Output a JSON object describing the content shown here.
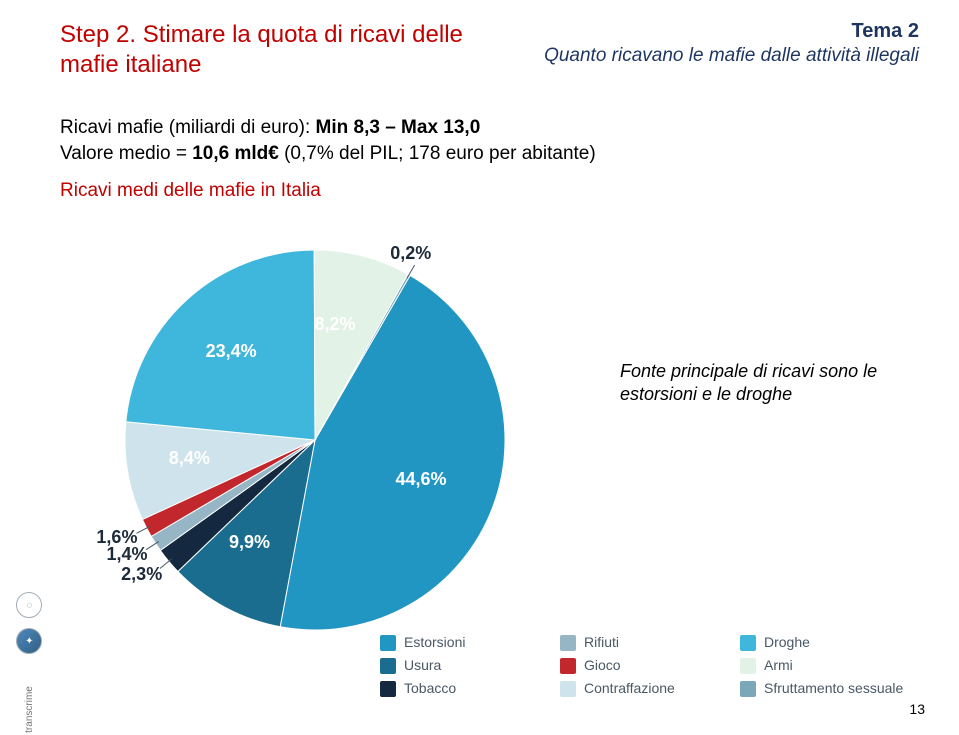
{
  "header": {
    "title_left": "Step 2. Stimare la quota di ricavi delle mafie italiane",
    "tema": "Tema 2",
    "subtema": "Quanto ricavano le mafie dalle attività illegali"
  },
  "body": {
    "line1_pre": "Ricavi mafie (miliardi di euro): ",
    "line1_bold": "Min 8,3 – Max 13,0",
    "line2_pre": "Valore medio = ",
    "line2_bold": "10,6 mld€",
    "line2_post": " (0,7% del PIL; 178 euro per abitante)",
    "chart_title": "Ricavi medi delle mafie in Italia"
  },
  "side_note": "Fonte principale di ricavi sono le estorsioni e le droghe",
  "page_number": "13",
  "pie": {
    "type": "pie",
    "background_color": "#ffffff",
    "start_angle_deg": -60,
    "slices": [
      {
        "label": "Estorsioni",
        "value": 44.6,
        "pct_label": "44,6%",
        "color": "#2296c2",
        "label_inside": true
      },
      {
        "label": "Usura",
        "value": 9.9,
        "pct_label": "9,9%",
        "color": "#1a6d8e",
        "label_inside": true
      },
      {
        "label": "Tabacco",
        "value": 2.3,
        "pct_label": "2,3%",
        "color": "#14293f",
        "label_inside": false
      },
      {
        "label": "Rifiuti",
        "value": 1.4,
        "pct_label": "1,4%",
        "color": "#96b6c5",
        "label_inside": false
      },
      {
        "label": "Gioco",
        "value": 1.6,
        "pct_label": "1,6%",
        "color": "#c1272d",
        "label_inside": false
      },
      {
        "label": "Contraffazione",
        "value": 8.4,
        "pct_label": "8,4%",
        "color": "#cfe3ec",
        "label_inside": true
      },
      {
        "label": "Droghe",
        "value": 23.4,
        "pct_label": "23,4%",
        "color": "#3fb6db",
        "label_inside": true
      },
      {
        "label": "Armi",
        "value": 8.2,
        "pct_label": "8,2%",
        "color": "#e3f2e6",
        "label_inside": true
      },
      {
        "label": "Sfruttamento sessuale",
        "value": 0.2,
        "pct_label": "0,2%",
        "color": "#7aa8b8",
        "label_inside": false
      }
    ]
  },
  "legend": {
    "order": [
      {
        "label": "Estorsioni",
        "color": "#2296c2"
      },
      {
        "label": "Rifiuti",
        "color": "#96b6c5"
      },
      {
        "label": "Droghe",
        "color": "#3fb6db"
      },
      {
        "label": "Usura",
        "color": "#1a6d8e"
      },
      {
        "label": "Gioco",
        "color": "#c1272d"
      },
      {
        "label": "Armi",
        "color": "#e3f2e6"
      },
      {
        "label": "Tobacco",
        "color": "#14293f"
      },
      {
        "label": "Contraffazione",
        "color": "#cfe3ec"
      },
      {
        "label": "Sfruttamento sessuale",
        "color": "#7aa8b8"
      }
    ]
  },
  "side_logos": {
    "brand": "transcrime"
  }
}
